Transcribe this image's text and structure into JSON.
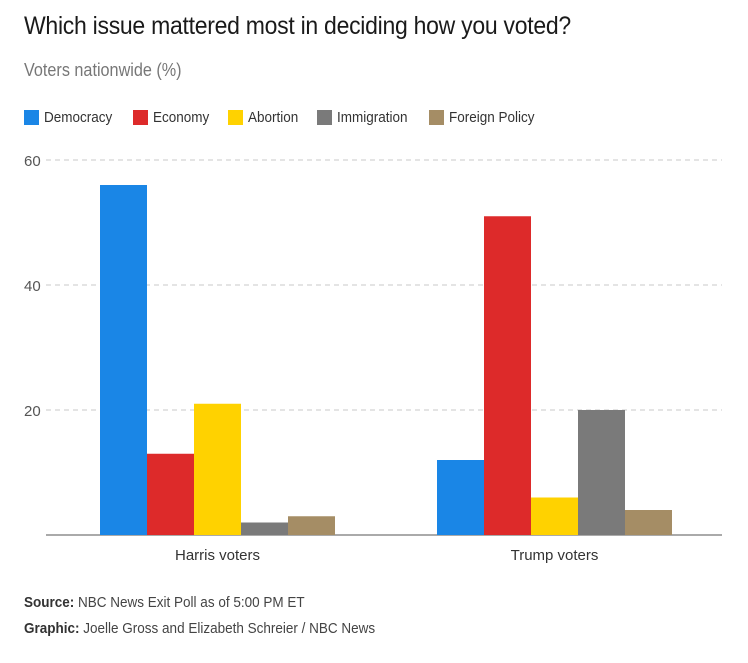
{
  "title": "Which issue mattered most in deciding how you voted?",
  "subtitle": "Voters nationwide (%)",
  "colors": {
    "Democracy": "#1a86e6",
    "Economy": "#dd2a2a",
    "Abortion": "#ffd200",
    "Immigration": "#7a7a7a",
    "Foreign Policy": "#a58d65"
  },
  "chart_data": {
    "type": "bar",
    "title": "Which issue mattered most in deciding how you voted?",
    "subtitle": "Voters nationwide (%)",
    "xlabel": "",
    "ylabel": "",
    "ylim": [
      0,
      60
    ],
    "yticks": [
      20,
      40,
      60
    ],
    "grid": true,
    "legend_position": "top-left",
    "categories": [
      "Harris voters",
      "Trump voters"
    ],
    "series": [
      {
        "name": "Democracy",
        "values": [
          56,
          12
        ]
      },
      {
        "name": "Economy",
        "values": [
          13,
          51
        ]
      },
      {
        "name": "Abortion",
        "values": [
          21,
          6
        ]
      },
      {
        "name": "Immigration",
        "values": [
          2,
          20
        ]
      },
      {
        "name": "Foreign Policy",
        "values": [
          3,
          4
        ]
      }
    ]
  },
  "footer": {
    "source_label": "Source:",
    "source_text": "NBC News Exit Poll as of 5:00 PM ET",
    "graphic_label": "Graphic:",
    "graphic_text": "Joelle Gross and Elizabeth Schreier / NBC News"
  }
}
